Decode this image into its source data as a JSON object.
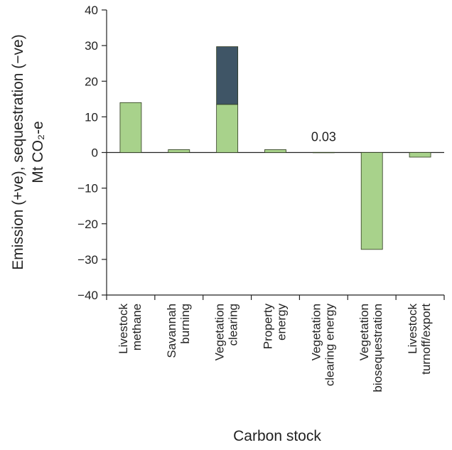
{
  "chart_data": {
    "type": "bar",
    "stacked": true,
    "categories": [
      [
        "Livestock",
        "methane"
      ],
      [
        "Savannah",
        "burning"
      ],
      [
        "Vegetation",
        "clearing"
      ],
      [
        "Property",
        "energy"
      ],
      [
        "Vegetation",
        "clearing energy"
      ],
      [
        "Vegetation",
        "biosequestration"
      ],
      [
        "Livestock",
        "turnoff/export"
      ]
    ],
    "series": [
      {
        "color": "#a8d28b",
        "values": [
          14,
          0.8,
          13.5,
          0.8,
          0.03,
          -27.2,
          -1.3
        ]
      },
      {
        "color": "#3f5566",
        "values": [
          0,
          0,
          16.2,
          0,
          0,
          0,
          0
        ]
      }
    ],
    "ylim": [
      -40,
      40
    ],
    "yticks": [
      -40,
      -30,
      -20,
      -10,
      0,
      10,
      20,
      30,
      40
    ],
    "ytick_labels": [
      "−40",
      "−30",
      "−20",
      "−10",
      "0",
      "10",
      "20",
      "30",
      "40"
    ],
    "ylabel_line1": "Emission (+ve), sequestration (−ve)",
    "ylabel_line2": "Mt CO₂-e",
    "xlabel": "Carbon stock",
    "annotation": {
      "text": "0.03",
      "category_index": 4
    }
  }
}
